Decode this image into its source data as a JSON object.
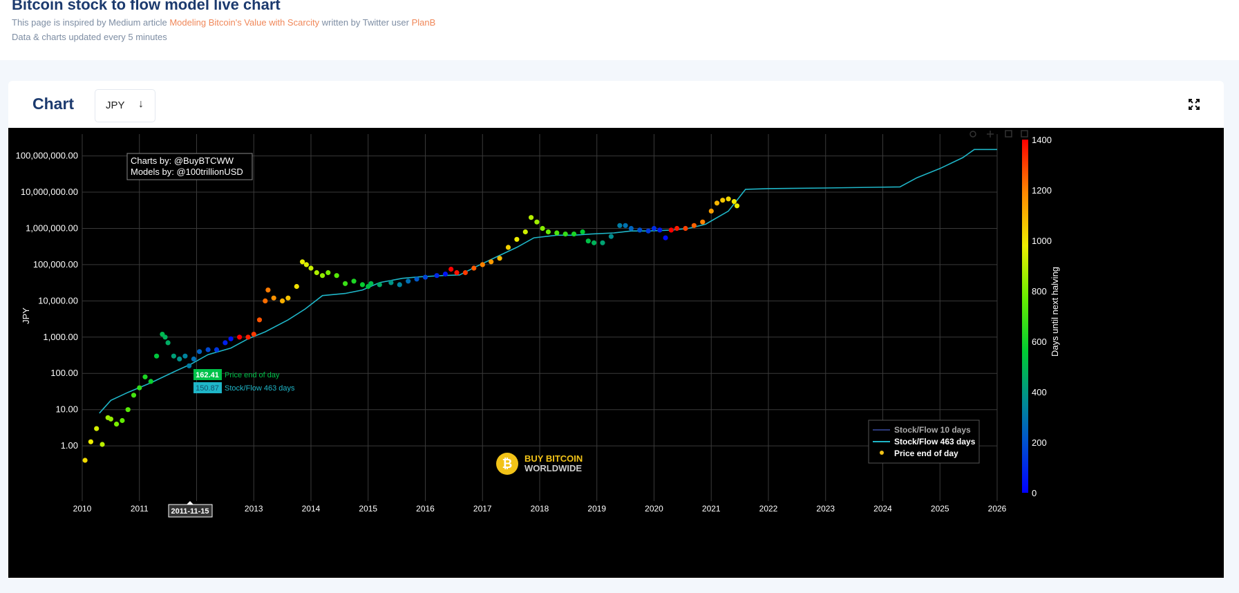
{
  "page": {
    "title": "Bitcoin stock to flow model live chart",
    "intro_prefix": "This page is inspired by Medium article ",
    "article_link": "Modeling Bitcoin's Value with Scarcity",
    "intro_middle": " written by Twitter user ",
    "author_link": "PlanB",
    "update_note": "Data & charts updated every 5 minutes"
  },
  "card": {
    "heading": "Chart",
    "currency": "JPY",
    "currency_arrow": "↓",
    "expand_icon": "expand-icon"
  },
  "colors": {
    "background": "#000000",
    "model_line": "#1fb6c8",
    "model_line_10d": "#2c3a7a",
    "grid": "#3a3a3a",
    "brand": "#f2c318"
  },
  "chart_data": {
    "type": "scatter",
    "y_scale": "log",
    "xlim": [
      "2010-01-01",
      "2026-01-01"
    ],
    "ylim": [
      0.03,
      400000000
    ],
    "x_ticks": [
      "2010",
      "2011",
      "2012",
      "2013",
      "2014",
      "2015",
      "2016",
      "2017",
      "2018",
      "2019",
      "2020",
      "2021",
      "2022",
      "2023",
      "2024",
      "2025",
      "2026"
    ],
    "y_ticks": [
      "1.00",
      "10.00",
      "100.00",
      "1,000.00",
      "10,000.00",
      "100,000.00",
      "1,000,000.00",
      "10,000,000.00",
      "100,000,000.00"
    ],
    "ylabel": "JPY",
    "grid": true,
    "annotation": {
      "line1": "Charts by: @BuyBTCWW",
      "line2": "Models by: @100trillionUSD"
    },
    "hover": {
      "date": "2011-11-15",
      "price_value": "162.41",
      "price_label": "Price end of day",
      "model_value": "150.87",
      "model_label": "Stock/Flow 463 days"
    },
    "legend": {
      "position": "bottom-right",
      "items": [
        "Stock/Flow 10 days",
        "Stock/Flow 463 days",
        "Price end of day"
      ]
    },
    "colorbar": {
      "title": "Days until next halving",
      "range": [
        0,
        1400
      ],
      "ticks": [
        "0",
        "200",
        "400",
        "600",
        "800",
        "1000",
        "1200",
        "1400"
      ]
    },
    "watermark": {
      "line1": "BUY BITCOIN",
      "line2": "WORLDWIDE"
    },
    "series": [
      {
        "name": "Stock/Flow 463 days",
        "x": [
          2010.3,
          2010.5,
          2010.8,
          2011.2,
          2011.6,
          2011.9,
          2012.2,
          2012.6,
          2012.9,
          2013.2,
          2013.6,
          2013.9,
          2014.2,
          2014.6,
          2014.9,
          2015.2,
          2015.6,
          2015.9,
          2016.3,
          2016.6,
          2016.9,
          2017.3,
          2017.6,
          2017.9,
          2018.3,
          2018.6,
          2018.9,
          2019.3,
          2019.6,
          2019.9,
          2020.3,
          2020.6,
          2020.9,
          2021.3,
          2021.6,
          2022.0,
          2023.0,
          2024.3,
          2024.6,
          2025.0,
          2025.4,
          2025.6,
          2026.0
        ],
        "y": [
          8,
          18,
          30,
          55,
          110,
          180,
          330,
          500,
          900,
          1400,
          3000,
          6000,
          14000,
          16000,
          20000,
          32000,
          42000,
          46000,
          50000,
          52000,
          90000,
          180000,
          300000,
          550000,
          650000,
          650000,
          700000,
          750000,
          850000,
          850000,
          900000,
          1000000,
          1300000,
          3000000,
          12000000,
          12500000,
          13000000,
          14000000,
          25000000,
          45000000,
          90000000,
          150000000,
          150000000
        ]
      },
      {
        "name": "Price end of day",
        "color_by": "days until next halving",
        "x": [
          2010.05,
          2010.15,
          2010.25,
          2010.35,
          2010.45,
          2010.5,
          2010.6,
          2010.7,
          2010.8,
          2010.9,
          2011.0,
          2011.1,
          2011.2,
          2011.3,
          2011.4,
          2011.45,
          2011.5,
          2011.6,
          2011.7,
          2011.8,
          2011.87,
          2011.95,
          2012.05,
          2012.2,
          2012.35,
          2012.5,
          2012.6,
          2012.75,
          2012.9,
          2013.0,
          2013.1,
          2013.2,
          2013.25,
          2013.35,
          2013.5,
          2013.6,
          2013.75,
          2013.85,
          2013.92,
          2014.0,
          2014.1,
          2014.2,
          2014.3,
          2014.45,
          2014.6,
          2014.75,
          2014.9,
          2015.0,
          2015.05,
          2015.2,
          2015.4,
          2015.55,
          2015.7,
          2015.85,
          2016.0,
          2016.2,
          2016.35,
          2016.45,
          2016.55,
          2016.7,
          2016.85,
          2017.0,
          2017.15,
          2017.3,
          2017.45,
          2017.6,
          2017.75,
          2017.85,
          2017.95,
          2018.05,
          2018.15,
          2018.3,
          2018.45,
          2018.6,
          2018.75,
          2018.85,
          2018.95,
          2019.1,
          2019.25,
          2019.4,
          2019.5,
          2019.6,
          2019.75,
          2019.9,
          2020.0,
          2020.1,
          2020.2,
          2020.3,
          2020.4,
          2020.55,
          2020.7,
          2020.85,
          2021.0,
          2021.1,
          2021.2,
          2021.3,
          2021.4,
          2021.45
        ],
        "y": [
          0.4,
          1.3,
          3,
          1.1,
          6,
          5.5,
          4,
          5,
          10,
          25,
          40,
          80,
          60,
          300,
          1200,
          1000,
          700,
          300,
          250,
          300,
          162,
          250,
          400,
          450,
          450,
          700,
          900,
          1000,
          1000,
          1200,
          3000,
          10000,
          20000,
          12000,
          10000,
          12000,
          25000,
          120000,
          100000,
          80000,
          60000,
          50000,
          60000,
          50000,
          30000,
          35000,
          28000,
          25000,
          30000,
          28000,
          32000,
          28000,
          35000,
          40000,
          45000,
          50000,
          55000,
          75000,
          60000,
          60000,
          80000,
          100000,
          120000,
          150000,
          300000,
          500000,
          800000,
          2000000,
          1500000,
          1000000,
          800000,
          750000,
          700000,
          700000,
          800000,
          450000,
          400000,
          400000,
          600000,
          1200000,
          1200000,
          1000000,
          900000,
          850000,
          1000000,
          900000,
          550000,
          900000,
          1000000,
          1000000,
          1200000,
          1500000,
          3000000,
          5000000,
          6000000,
          6500000,
          5500000,
          4200000
        ],
        "days_to_halving": [
          1020,
          980,
          940,
          900,
          860,
          840,
          800,
          760,
          740,
          700,
          660,
          620,
          580,
          540,
          500,
          480,
          460,
          420,
          380,
          340,
          320,
          280,
          240,
          180,
          130,
          80,
          40,
          1400,
          1350,
          1310,
          1270,
          1230,
          1210,
          1170,
          1110,
          1070,
          1010,
          970,
          950,
          920,
          880,
          840,
          800,
          740,
          680,
          620,
          570,
          530,
          510,
          460,
          390,
          340,
          280,
          220,
          170,
          100,
          50,
          1400,
          1370,
          1310,
          1260,
          1200,
          1150,
          1090,
          1040,
          980,
          930,
          890,
          860,
          820,
          780,
          720,
          670,
          610,
          560,
          520,
          480,
          430,
          370,
          320,
          290,
          250,
          200,
          140,
          110,
          70,
          30,
          1400,
          1360,
          1300,
          1250,
          1200,
          1140,
          1100,
          1060,
          1030,
          990,
          970
        ]
      }
    ]
  }
}
